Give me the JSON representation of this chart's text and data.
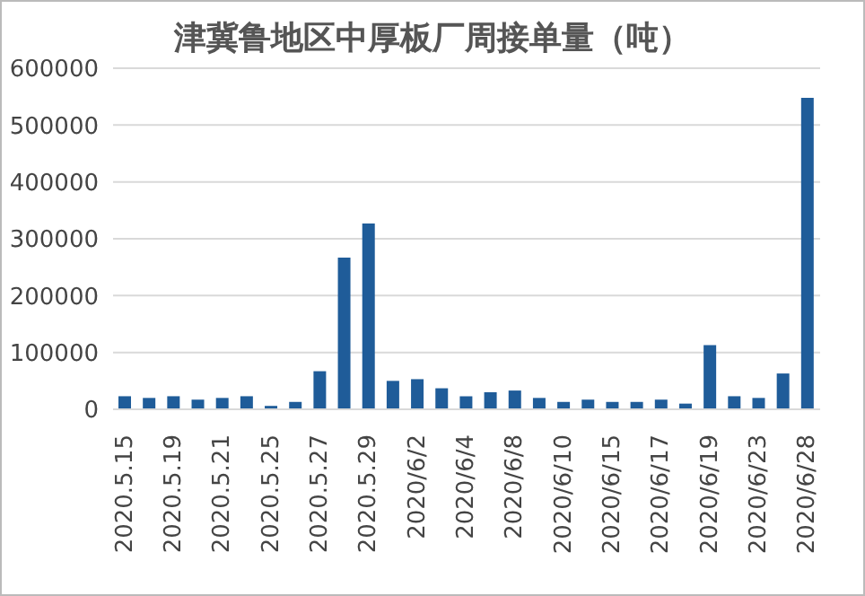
{
  "chart_data": {
    "type": "bar",
    "title": "津冀鲁地区中厚板厂周接单量（吨）",
    "categories": [
      "2020.5.15",
      null,
      "2020.5.19",
      null,
      "2020.5.21",
      null,
      "2020.5.25",
      null,
      "2020.5.27",
      null,
      "2020.5.29",
      null,
      "2020/6/2",
      null,
      "2020/6/4",
      null,
      "2020/6/8",
      null,
      "2020/6/10",
      null,
      "2020/6/15",
      null,
      "2020/6/17",
      null,
      "2020/6/19",
      null,
      "2020/6/23",
      null,
      "2020/6/28"
    ],
    "values": [
      23000,
      20000,
      23000,
      17000,
      20000,
      23000,
      6000,
      13000,
      67000,
      267000,
      327000,
      50000,
      53000,
      37000,
      23000,
      30000,
      33000,
      20000,
      13000,
      17000,
      13000,
      13000,
      17000,
      10000,
      113000,
      23000,
      20000,
      63000,
      548000
    ],
    "color": "#1f5c99",
    "ylim": [
      0,
      600000
    ],
    "yticks": [
      0,
      100000,
      200000,
      300000,
      400000,
      500000,
      600000
    ],
    "grid": "y",
    "legend": false
  }
}
